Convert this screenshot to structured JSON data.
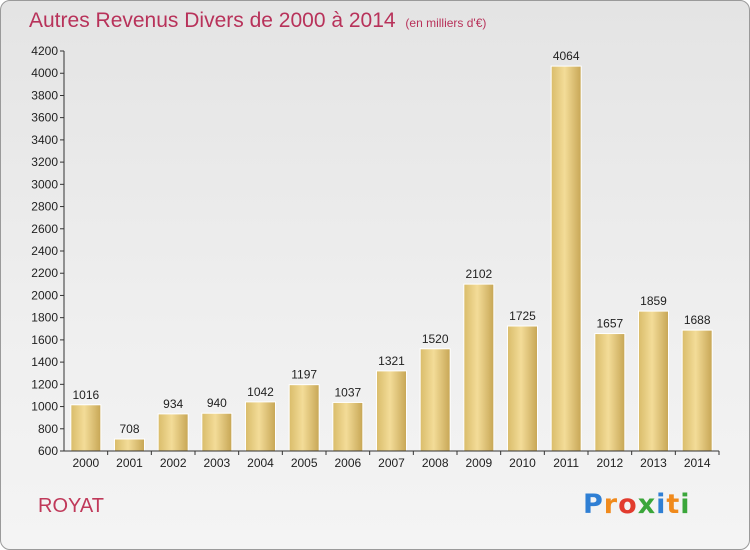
{
  "title": "Autres Revenus Divers de 2000 à 2014",
  "subtitle": "(en milliers d'€)",
  "commune": "ROYAT",
  "logo": {
    "text": "Proxiti",
    "letters": [
      {
        "ch": "P",
        "color": "#2f7fd4"
      },
      {
        "ch": "r",
        "color": "#f08a1c"
      },
      {
        "ch": "o",
        "color": "#e23b2e"
      },
      {
        "ch": "x",
        "color": "#3aa63a"
      },
      {
        "ch": "i",
        "color": "#2f7fd4"
      },
      {
        "ch": "t",
        "color": "#f08a1c"
      },
      {
        "ch": "i",
        "color": "#3aa63a"
      }
    ]
  },
  "chart_data": {
    "type": "bar",
    "title": "Autres Revenus Divers de 2000 à 2014",
    "categories": [
      "2000",
      "2001",
      "2002",
      "2003",
      "2004",
      "2005",
      "2006",
      "2007",
      "2008",
      "2009",
      "2010",
      "2011",
      "2012",
      "2013",
      "2014"
    ],
    "values": [
      1016,
      708,
      934,
      940,
      1042,
      1197,
      1037,
      1321,
      1520,
      2102,
      1725,
      4064,
      1657,
      1859,
      1688
    ],
    "ylim": [
      600,
      4200
    ],
    "yticks": [
      600,
      800,
      1000,
      1200,
      1400,
      1600,
      1800,
      2000,
      2200,
      2400,
      2600,
      2800,
      3000,
      3200,
      3400,
      3600,
      3800,
      4000,
      4200
    ],
    "grid": false,
    "bar_color": "#e6cd84",
    "xlabel": "",
    "ylabel": ""
  }
}
